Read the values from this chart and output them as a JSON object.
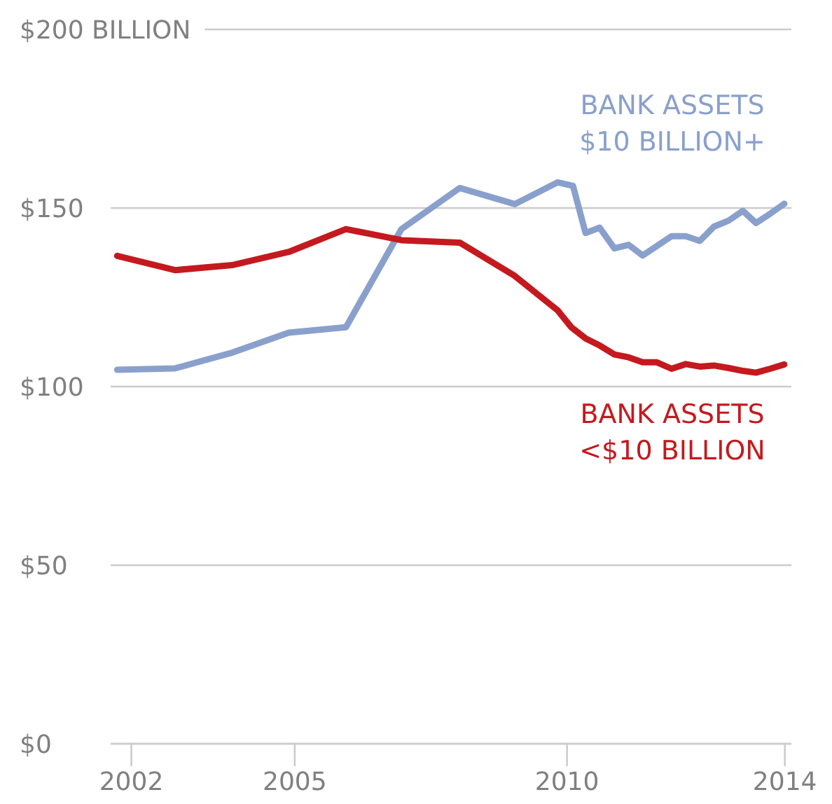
{
  "chart_data": {
    "type": "line",
    "xlim": [
      2001.62,
      2014.12
    ],
    "xticks": [
      2002,
      2005,
      2010,
      2014
    ],
    "ylim": [
      0,
      200
    ],
    "yticks": [
      {
        "value": 0,
        "label": "$0"
      },
      {
        "value": 50,
        "label": "$50"
      },
      {
        "value": 100,
        "label": "$100"
      },
      {
        "value": 150,
        "label": "$150"
      },
      {
        "value": 200,
        "label": "$200 BILLION"
      }
    ],
    "grid": "y",
    "marker": "none",
    "line_style": "solid",
    "series": [
      {
        "name": "BANK ASSETS $10 BILLION+",
        "color": "#8aa0cc",
        "x": [
          2001.74,
          2002.8,
          2003.85,
          2004.89,
          2005.94,
          2006.96,
          2008.03,
          2009.04,
          2009.83,
          2010.11,
          2010.34,
          2010.6,
          2010.87,
          2011.13,
          2011.39,
          2011.92,
          2012.18,
          2012.44,
          2012.7,
          2012.97,
          2013.23,
          2013.47,
          2013.73,
          2013.99
        ],
        "values": [
          104.7,
          105.1,
          109.5,
          115.1,
          116.6,
          144.1,
          155.6,
          151.1,
          157.2,
          156.2,
          143.0,
          144.5,
          138.7,
          139.7,
          136.7,
          142.1,
          142.1,
          140.8,
          144.8,
          146.5,
          149.2,
          145.8,
          148.4,
          151.2
        ]
      },
      {
        "name": "BANK ASSETS <$10 BILLION",
        "color": "#c41a1f",
        "x": [
          2001.74,
          2002.8,
          2003.85,
          2004.89,
          2005.94,
          2006.96,
          2008.03,
          2009.04,
          2009.83,
          2010.08,
          2010.34,
          2010.6,
          2010.87,
          2011.13,
          2011.39,
          2011.65,
          2011.92,
          2012.18,
          2012.44,
          2012.7,
          2012.97,
          2013.23,
          2013.47,
          2013.73,
          2013.99
        ],
        "values": [
          136.6,
          132.6,
          134.0,
          137.7,
          144.1,
          141.0,
          140.3,
          131.0,
          121.3,
          116.6,
          113.5,
          111.5,
          109.0,
          108.2,
          106.8,
          106.8,
          105.0,
          106.3,
          105.6,
          105.9,
          105.2,
          104.4,
          103.9,
          105.0,
          106.2
        ]
      }
    ]
  }
}
